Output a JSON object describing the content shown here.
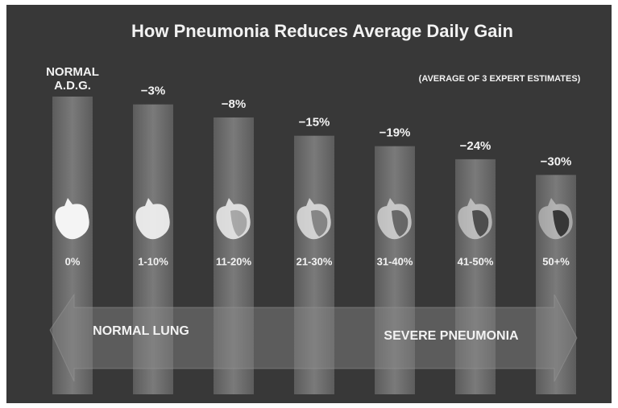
{
  "chart_data": {
    "type": "bar",
    "title": "How Pneumonia Reduces Average Daily Gain",
    "subtitle": "(AVERAGE OF 3 EXPERT ESTIMATES)",
    "categories": [
      "0%",
      "1-10%",
      "11-20%",
      "21-30%",
      "31-40%",
      "41-50%",
      "50+%"
    ],
    "values": [
      0,
      -3,
      -8,
      -15,
      -19,
      -24,
      -30
    ],
    "value_labels": [
      "NORMAL A.D.G.",
      "−3%",
      "−8%",
      "−15%",
      "−19%",
      "−24%",
      "−30%"
    ],
    "color": "#707070",
    "ylim": [
      -114,
      0
    ],
    "arrow_left_label": "NORMAL LUNG",
    "arrow_right_label": "SEVERE PNEUMONIA"
  }
}
